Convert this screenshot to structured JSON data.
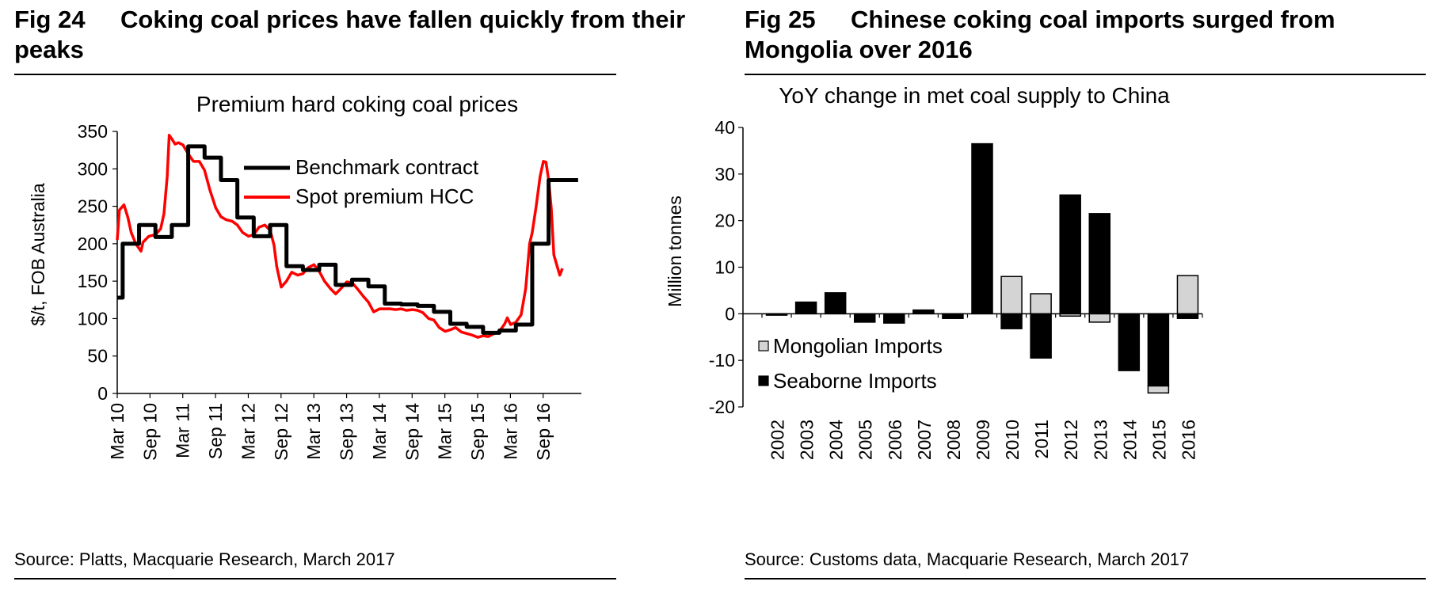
{
  "left": {
    "fig_label": "Fig 24",
    "fig_title": "Coking coal prices have fallen quickly from their peaks",
    "source": "Source: Platts, Macquarie Research, March 2017"
  },
  "right": {
    "fig_label": "Fig 25",
    "fig_title": "Chinese coking coal imports surged from Mongolia over 2016",
    "source": "Source: Customs data, Macquarie Research, March 2017"
  },
  "colors": {
    "benchmark": "#000000",
    "spot": "#ff0000",
    "mongolian": "#d4d4d4",
    "seaborne": "#000000"
  },
  "chart_data": [
    {
      "type": "line",
      "title": "Premium hard coking coal prices",
      "xlabel": "",
      "ylabel": "$/t, FOB Australia",
      "ylim": [
        0,
        350
      ],
      "yticks": [
        0,
        50,
        100,
        150,
        200,
        250,
        300,
        350
      ],
      "xlim": [
        2010.167,
        2017.25
      ],
      "xticks": [
        {
          "label": "Mar 10",
          "t": 2010.167
        },
        {
          "label": "Sep 10",
          "t": 2010.667
        },
        {
          "label": "Mar 11",
          "t": 2011.167
        },
        {
          "label": "Sep 11",
          "t": 2011.667
        },
        {
          "label": "Mar 12",
          "t": 2012.167
        },
        {
          "label": "Sep 12",
          "t": 2012.667
        },
        {
          "label": "Mar 13",
          "t": 2013.167
        },
        {
          "label": "Sep 13",
          "t": 2013.667
        },
        {
          "label": "Mar 14",
          "t": 2014.167
        },
        {
          "label": "Sep 14",
          "t": 2014.667
        },
        {
          "label": "Mar 15",
          "t": 2015.167
        },
        {
          "label": "Sep 15",
          "t": 2015.667
        },
        {
          "label": "Mar 16",
          "t": 2016.167
        },
        {
          "label": "Sep 16",
          "t": 2016.667
        }
      ],
      "legend_position": "top-center",
      "series": [
        {
          "name": "Benchmark contract",
          "step": true,
          "points": [
            [
              2010.167,
              128
            ],
            [
              2010.25,
              200
            ],
            [
              2010.5,
              225
            ],
            [
              2010.75,
              209
            ],
            [
              2011.0,
              225
            ],
            [
              2011.25,
              330
            ],
            [
              2011.5,
              315
            ],
            [
              2011.75,
              285
            ],
            [
              2012.0,
              235
            ],
            [
              2012.25,
              210
            ],
            [
              2012.5,
              225
            ],
            [
              2012.75,
              170
            ],
            [
              2013.0,
              165
            ],
            [
              2013.25,
              172
            ],
            [
              2013.5,
              145
            ],
            [
              2013.75,
              152
            ],
            [
              2014.0,
              143
            ],
            [
              2014.25,
              120
            ],
            [
              2014.5,
              119
            ],
            [
              2014.75,
              117
            ],
            [
              2015.0,
              109
            ],
            [
              2015.25,
              93
            ],
            [
              2015.5,
              89
            ],
            [
              2015.75,
              81
            ],
            [
              2016.0,
              84
            ],
            [
              2016.25,
              92
            ],
            [
              2016.5,
              200
            ],
            [
              2016.75,
              285
            ],
            [
              2017.0,
              285
            ]
          ]
        },
        {
          "name": "Spot premium HCC",
          "step": false,
          "points": [
            [
              2010.167,
              205
            ],
            [
              2010.2,
              245
            ],
            [
              2010.27,
              252
            ],
            [
              2010.33,
              235
            ],
            [
              2010.38,
              215
            ],
            [
              2010.45,
              200
            ],
            [
              2010.53,
              190
            ],
            [
              2010.56,
              202
            ],
            [
              2010.65,
              210
            ],
            [
              2010.75,
              212
            ],
            [
              2010.83,
              220
            ],
            [
              2010.88,
              240
            ],
            [
              2010.93,
              290
            ],
            [
              2010.96,
              345
            ],
            [
              2011.0,
              340
            ],
            [
              2011.05,
              333
            ],
            [
              2011.1,
              335
            ],
            [
              2011.17,
              332
            ],
            [
              2011.25,
              320
            ],
            [
              2011.33,
              310
            ],
            [
              2011.42,
              310
            ],
            [
              2011.5,
              298
            ],
            [
              2011.58,
              272
            ],
            [
              2011.67,
              248
            ],
            [
              2011.75,
              236
            ],
            [
              2011.83,
              232
            ],
            [
              2011.92,
              230
            ],
            [
              2012.0,
              225
            ],
            [
              2012.08,
              215
            ],
            [
              2012.17,
              210
            ],
            [
              2012.25,
              212
            ],
            [
              2012.33,
              222
            ],
            [
              2012.42,
              225
            ],
            [
              2012.5,
              218
            ],
            [
              2012.56,
              198
            ],
            [
              2012.6,
              170
            ],
            [
              2012.67,
              142
            ],
            [
              2012.75,
              150
            ],
            [
              2012.83,
              162
            ],
            [
              2012.92,
              158
            ],
            [
              2013.0,
              160
            ],
            [
              2013.08,
              168
            ],
            [
              2013.17,
              172
            ],
            [
              2013.25,
              163
            ],
            [
              2013.33,
              150
            ],
            [
              2013.42,
              140
            ],
            [
              2013.5,
              133
            ],
            [
              2013.58,
              140
            ],
            [
              2013.67,
              149
            ],
            [
              2013.75,
              148
            ],
            [
              2013.83,
              140
            ],
            [
              2013.92,
              130
            ],
            [
              2014.0,
              122
            ],
            [
              2014.08,
              109
            ],
            [
              2014.17,
              113
            ],
            [
              2014.25,
              113
            ],
            [
              2014.33,
              113
            ],
            [
              2014.42,
              112
            ],
            [
              2014.5,
              113
            ],
            [
              2014.58,
              111
            ],
            [
              2014.67,
              112
            ],
            [
              2014.75,
              111
            ],
            [
              2014.83,
              108
            ],
            [
              2014.92,
              100
            ],
            [
              2015.0,
              98
            ],
            [
              2015.08,
              88
            ],
            [
              2015.17,
              83
            ],
            [
              2015.25,
              85
            ],
            [
              2015.33,
              88
            ],
            [
              2015.42,
              82
            ],
            [
              2015.5,
              80
            ],
            [
              2015.58,
              78
            ],
            [
              2015.67,
              75
            ],
            [
              2015.75,
              77
            ],
            [
              2015.83,
              76
            ],
            [
              2015.92,
              80
            ],
            [
              2016.0,
              83
            ],
            [
              2016.08,
              93
            ],
            [
              2016.12,
              101
            ],
            [
              2016.17,
              92
            ],
            [
              2016.25,
              95
            ],
            [
              2016.33,
              105
            ],
            [
              2016.4,
              140
            ],
            [
              2016.46,
              200
            ],
            [
              2016.5,
              215
            ],
            [
              2016.56,
              250
            ],
            [
              2016.62,
              290
            ],
            [
              2016.67,
              310
            ],
            [
              2016.71,
              309
            ],
            [
              2016.75,
              285
            ],
            [
              2016.79,
              248
            ],
            [
              2016.83,
              185
            ],
            [
              2016.88,
              170
            ],
            [
              2016.92,
              158
            ],
            [
              2016.96,
              167
            ]
          ]
        }
      ]
    },
    {
      "type": "bar",
      "stacked": true,
      "title": "YoY change in met coal supply to China",
      "xlabel": "",
      "ylabel": "Million tonnes",
      "ylim": [
        -20,
        40
      ],
      "yticks": [
        -20,
        -10,
        0,
        10,
        20,
        30,
        40
      ],
      "categories": [
        "2002",
        "2003",
        "2004",
        "2005",
        "2006",
        "2007",
        "2008",
        "2009",
        "2010",
        "2011",
        "2012",
        "2013",
        "2014",
        "2015",
        "2016"
      ],
      "legend_position": "bottom-left",
      "series": [
        {
          "name": "Mongolian Imports",
          "values": [
            0,
            0,
            0,
            0,
            0,
            0,
            0,
            0,
            8,
            4.3,
            -0.5,
            -1.8,
            0,
            -1.5,
            8.2
          ]
        },
        {
          "name": "Seaborne Imports",
          "values": [
            -0.3,
            2.5,
            4.5,
            -1.8,
            -2,
            0.8,
            -1,
            36.5,
            -3.2,
            -9.5,
            25.5,
            21.5,
            -12.2,
            -15.5,
            -1
          ]
        }
      ]
    }
  ]
}
